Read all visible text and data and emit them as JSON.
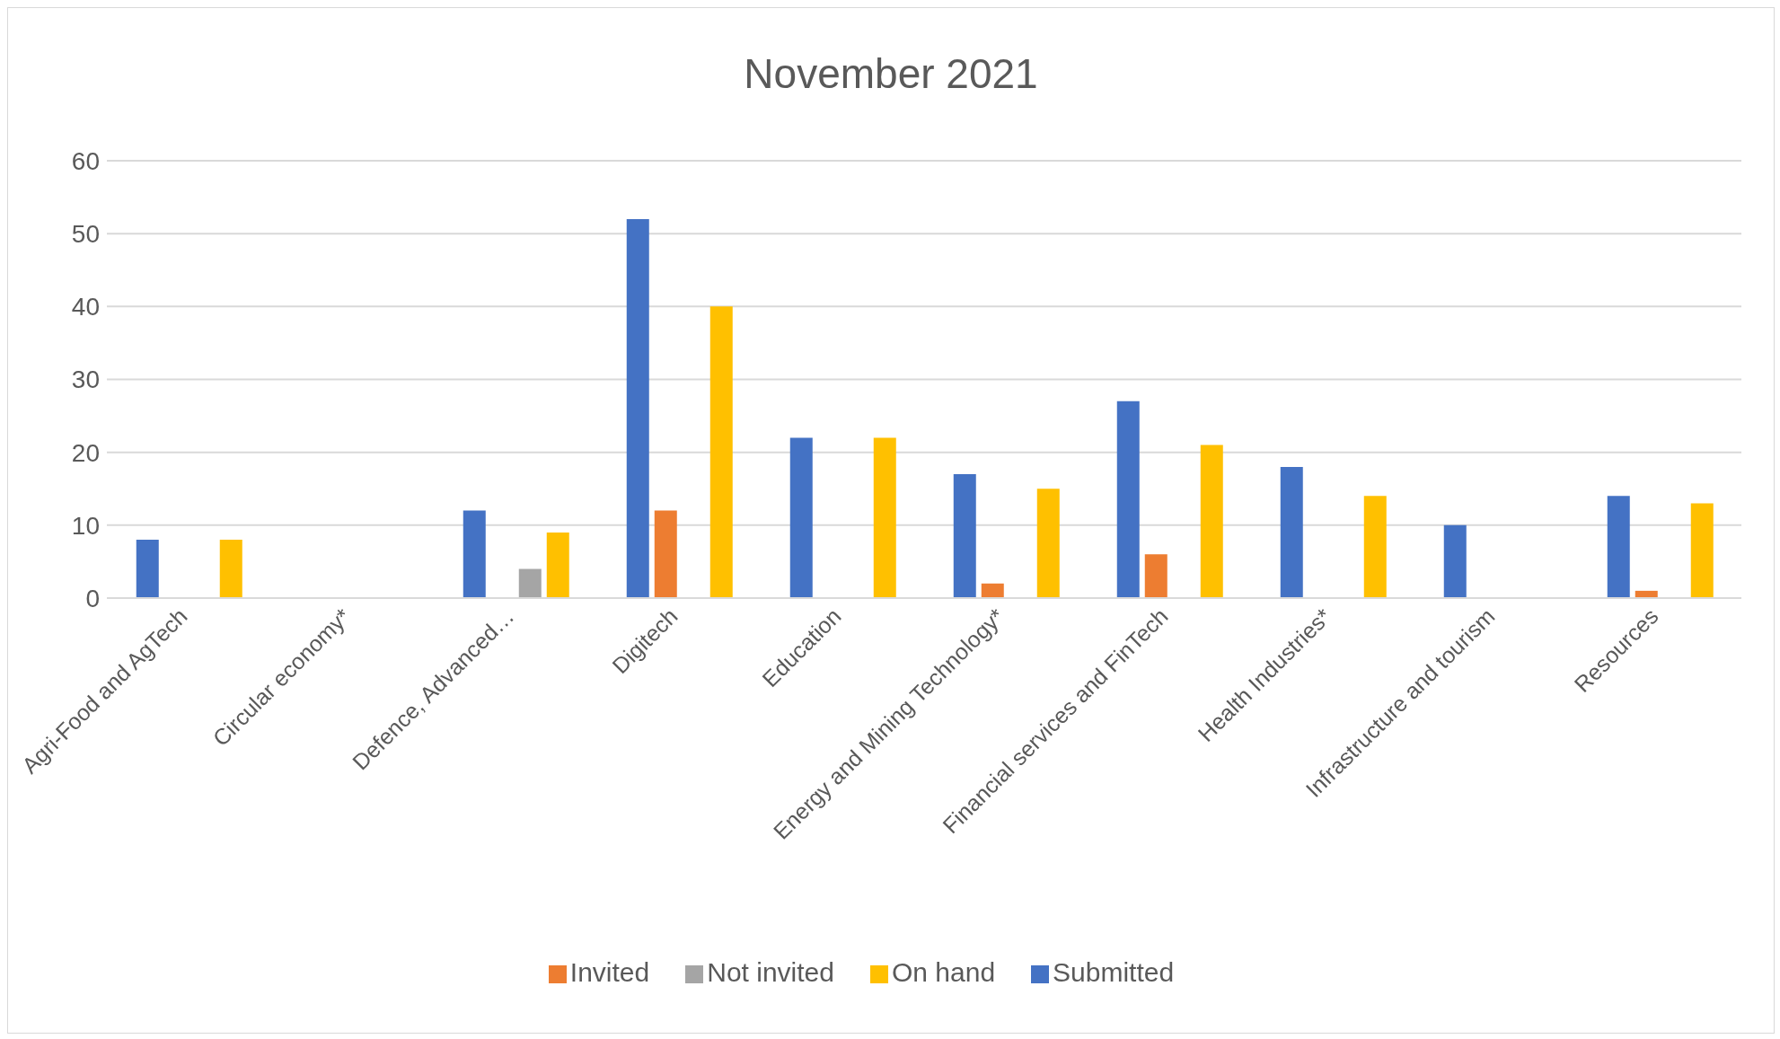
{
  "chart_data": {
    "type": "bar",
    "title": "November 2021",
    "categories": [
      "Agri-Food and AgTech",
      "Circular economy*",
      "Defence, Advanced…",
      "Digitech",
      "Education",
      "Energy and Mining Technology*",
      "Financial services and FinTech",
      "Health Industries*",
      "Infrastructure and tourism",
      "Resources"
    ],
    "series": [
      {
        "name": "Submitted",
        "color": "#4472c4",
        "values": [
          8,
          null,
          12,
          52,
          22,
          17,
          27,
          18,
          10,
          14
        ]
      },
      {
        "name": "Invited",
        "color": "#ed7d31",
        "values": [
          null,
          null,
          null,
          12,
          null,
          2,
          6,
          null,
          null,
          1
        ]
      },
      {
        "name": "Not invited",
        "color": "#a5a5a5",
        "values": [
          null,
          null,
          4,
          null,
          null,
          null,
          null,
          null,
          null,
          null
        ]
      },
      {
        "name": "On hand",
        "color": "#ffc000",
        "values": [
          8,
          null,
          9,
          40,
          22,
          15,
          21,
          14,
          null,
          13
        ]
      }
    ],
    "ylim": [
      0,
      60
    ],
    "yticks": [
      0,
      10,
      20,
      30,
      40,
      50,
      60
    ],
    "grid": "y",
    "legend": "bottom"
  }
}
